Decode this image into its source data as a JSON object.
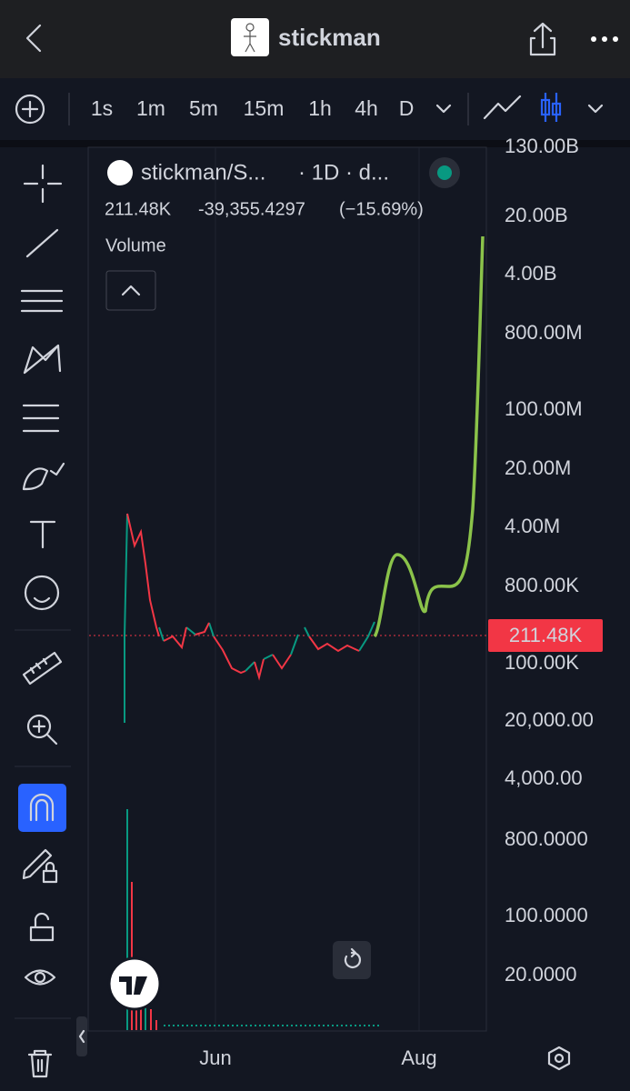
{
  "header": {
    "title": "stickman"
  },
  "toolbar": {
    "intervals": [
      "1s",
      "1m",
      "5m",
      "15m",
      "1h",
      "4h",
      "D"
    ]
  },
  "legend": {
    "symbol": "stickman/S...",
    "interval": "· 1D · d...",
    "price": "211.48K",
    "change": "-39,355.4297",
    "change_pct": "(−15.69%)",
    "indicator": "Volume"
  },
  "price_axis": {
    "labels": [
      "130.00B",
      "20.00B",
      "4.00B",
      "800.00M",
      "100.00M",
      "20.00M",
      "4.00M",
      "800.00K",
      "100.00K",
      "20,000.00",
      "4,000.00",
      "800.0000",
      "100.0000",
      "20.0000"
    ],
    "current": "211.48K"
  },
  "time_axis": {
    "labels": [
      "Jun",
      "Aug"
    ]
  }
}
